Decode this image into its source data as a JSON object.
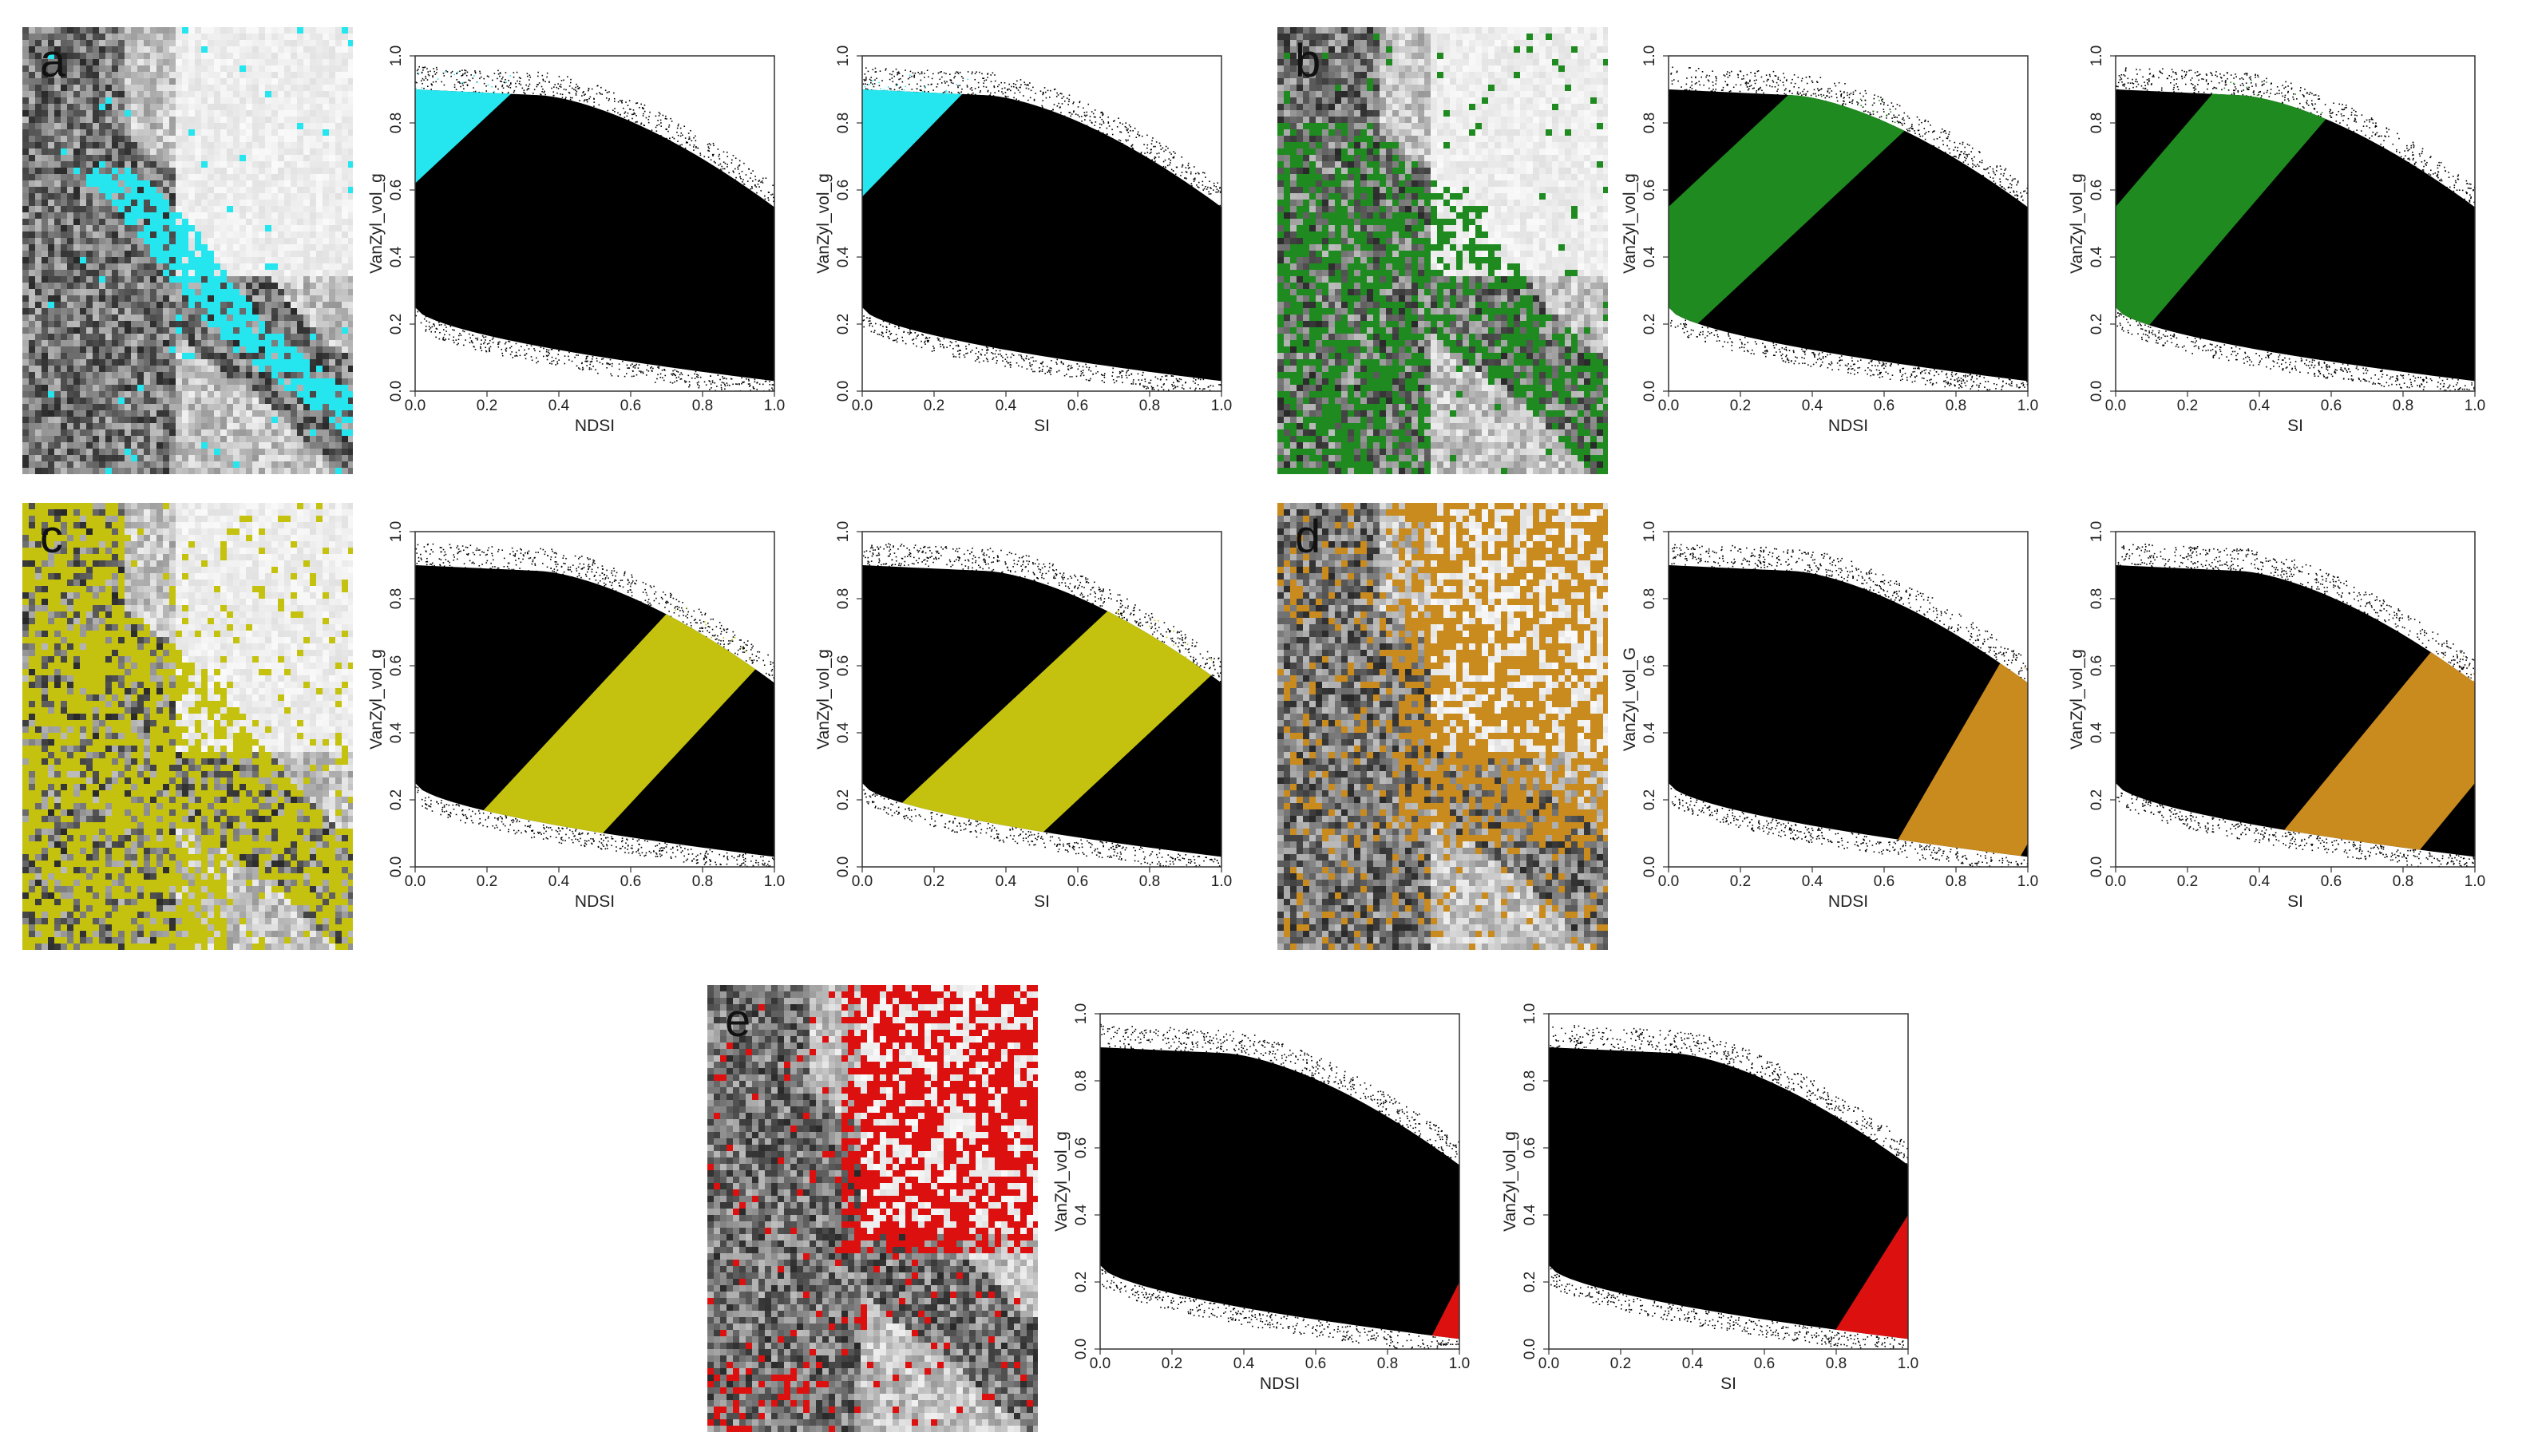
{
  "colors": {
    "a": "#25e6ee",
    "b": "#1f8a1f",
    "c": "#c4c20e",
    "d": "#c98a1e",
    "e": "#dd1010",
    "background": "#000000"
  },
  "panels": [
    {
      "id": "a",
      "letter": "a",
      "color": "#25e6ee"
    },
    {
      "id": "b",
      "letter": "b",
      "color": "#1f8a1f"
    },
    {
      "id": "c",
      "letter": "c",
      "color": "#c4c20e"
    },
    {
      "id": "d",
      "letter": "d",
      "color": "#c98a1e"
    },
    {
      "id": "e",
      "letter": "e",
      "color": "#dd1010"
    }
  ],
  "chart_data": [
    {
      "panel": "a",
      "type": "scatter",
      "xlabel": "NDSI",
      "ylabel": "VanZyl_vol_g",
      "xlim": [
        0,
        1
      ],
      "ylim": [
        0,
        1
      ],
      "x_ticks": [
        "0.0",
        "0.2",
        "0.4",
        "0.6",
        "0.8",
        "1.0"
      ],
      "y_ticks": [
        "0.0",
        "0.2",
        "0.4",
        "0.6",
        "0.8",
        "1.0"
      ],
      "highlight_band": {
        "color": "#25e6ee",
        "y_at_x0": [
          0.62,
          0.95
        ],
        "slope": 1.0
      }
    },
    {
      "panel": "a",
      "type": "scatter",
      "xlabel": "SI",
      "ylabel": "VanZyl_vol_g",
      "xlim": [
        0,
        1
      ],
      "ylim": [
        0,
        1
      ],
      "x_ticks": [
        "0.0",
        "0.2",
        "0.4",
        "0.6",
        "0.8",
        "1.0"
      ],
      "y_ticks": [
        "0.0",
        "0.2",
        "0.4",
        "0.6",
        "0.8",
        "1.0"
      ],
      "highlight_band": {
        "color": "#25e6ee",
        "y_at_x0": [
          0.58,
          0.95
        ],
        "slope": 1.1
      }
    },
    {
      "panel": "b",
      "type": "scatter",
      "xlabel": "NDSI",
      "ylabel": "VanZyl_vol_g",
      "xlim": [
        0,
        1
      ],
      "ylim": [
        0,
        1
      ],
      "x_ticks": [
        "0.0",
        "0.2",
        "0.4",
        "0.6",
        "0.8",
        "1.0"
      ],
      "y_ticks": [
        "0.0",
        "0.2",
        "0.4",
        "0.6",
        "0.8",
        "1.0"
      ],
      "highlight_band": {
        "color": "#1f8a1f",
        "y_at_x0": [
          0.12,
          0.55
        ],
        "slope": 1.0
      }
    },
    {
      "panel": "b",
      "type": "scatter",
      "xlabel": "SI",
      "ylabel": "VanZyl_vol_g",
      "xlim": [
        0,
        1
      ],
      "ylim": [
        0,
        1
      ],
      "x_ticks": [
        "0.0",
        "0.2",
        "0.4",
        "0.6",
        "0.8",
        "1.0"
      ],
      "y_ticks": [
        "0.0",
        "0.2",
        "0.4",
        "0.6",
        "0.8",
        "1.0"
      ],
      "highlight_band": {
        "color": "#1f8a1f",
        "y_at_x0": [
          0.08,
          0.55
        ],
        "slope": 1.25
      }
    },
    {
      "panel": "c",
      "type": "scatter",
      "xlabel": "NDSI",
      "ylabel": "VanZyl_vol_g",
      "xlim": [
        0,
        1
      ],
      "ylim": [
        0,
        1
      ],
      "x_ticks": [
        "0.0",
        "0.2",
        "0.4",
        "0.6",
        "0.8",
        "1.0"
      ],
      "y_ticks": [
        "0.0",
        "0.2",
        "0.4",
        "0.6",
        "0.8",
        "1.0"
      ],
      "highlight_band": {
        "color": "#c4c20e",
        "y_at_x0": [
          -0.5,
          -0.05
        ],
        "slope": 1.15
      }
    },
    {
      "panel": "c",
      "type": "scatter",
      "xlabel": "SI",
      "ylabel": "VanZyl_vol_g",
      "xlim": [
        0,
        1
      ],
      "ylim": [
        0,
        1
      ],
      "x_ticks": [
        "0.0",
        "0.2",
        "0.4",
        "0.6",
        "0.8",
        "1.0"
      ],
      "y_ticks": [
        "0.0",
        "0.2",
        "0.4",
        "0.6",
        "0.8",
        "1.0"
      ],
      "highlight_band": {
        "color": "#c4c20e",
        "y_at_x0": [
          -0.4,
          0.08
        ],
        "slope": 1.0
      }
    },
    {
      "panel": "d",
      "type": "scatter",
      "xlabel": "NDSI",
      "ylabel": "VanZyl_vol_G",
      "xlim": [
        0,
        1
      ],
      "ylim": [
        0,
        1
      ],
      "x_ticks": [
        "0.0",
        "0.2",
        "0.4",
        "0.6",
        "0.8",
        "1.0"
      ],
      "y_ticks": [
        "0.0",
        "0.2",
        "0.4",
        "0.6",
        "0.8",
        "1.0"
      ],
      "highlight_band": {
        "color": "#c98a1e",
        "y_at_x0": [
          -1.78,
          -1.1
        ],
        "slope": 1.85
      }
    },
    {
      "panel": "d",
      "type": "scatter",
      "xlabel": "SI",
      "ylabel": "VanZyl_vol_g",
      "xlim": [
        0,
        1
      ],
      "ylim": [
        0,
        1
      ],
      "x_ticks": [
        "0.0",
        "0.2",
        "0.4",
        "0.6",
        "0.8",
        "1.0"
      ],
      "y_ticks": [
        "0.0",
        "0.2",
        "0.4",
        "0.6",
        "0.8",
        "1.0"
      ],
      "highlight_band": {
        "color": "#c98a1e",
        "y_at_x0": [
          -1.05,
          -0.5
        ],
        "slope": 1.3
      }
    },
    {
      "panel": "e",
      "type": "scatter",
      "xlabel": "NDSI",
      "ylabel": "VanZyl_vol_g",
      "xlim": [
        0,
        1
      ],
      "ylim": [
        0,
        1
      ],
      "x_ticks": [
        "0.0",
        "0.2",
        "0.4",
        "0.6",
        "0.8",
        "1.0"
      ],
      "y_ticks": [
        "0.0",
        "0.2",
        "0.4",
        "0.6",
        "0.8",
        "1.0"
      ],
      "highlight_band": {
        "color": "#dd1010",
        "y_at_x0": [
          -6.0,
          -1.9
        ],
        "slope": 2.1
      }
    },
    {
      "panel": "e",
      "type": "scatter",
      "xlabel": "SI",
      "ylabel": "VanZyl_vol_g",
      "xlim": [
        0,
        1
      ],
      "ylim": [
        0,
        1
      ],
      "x_ticks": [
        "0.0",
        "0.2",
        "0.4",
        "0.6",
        "0.8",
        "1.0"
      ],
      "y_ticks": [
        "0.0",
        "0.2",
        "0.4",
        "0.6",
        "0.8",
        "1.0"
      ],
      "highlight_band": {
        "color": "#dd1010",
        "y_at_x0": [
          -6.0,
          -1.3
        ],
        "slope": 1.7
      }
    }
  ]
}
